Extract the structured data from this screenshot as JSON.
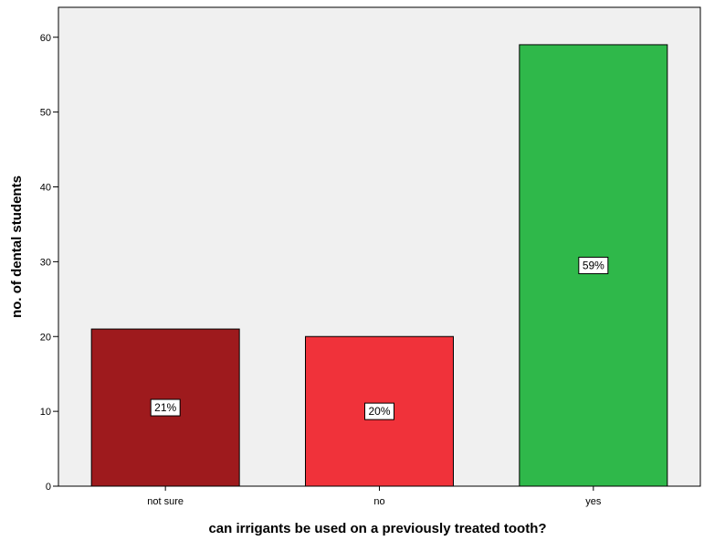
{
  "chart_data": {
    "type": "bar",
    "title": "",
    "xlabel": "can irrigants be used on a previously treated tooth?",
    "ylabel": "no. of dental students",
    "categories": [
      "not sure",
      "no",
      "yes"
    ],
    "values": [
      21,
      20,
      59
    ],
    "data_labels": [
      "21%",
      "20%",
      "59%"
    ],
    "colors": [
      "#9e1a1d",
      "#f0323a",
      "#2fb84a"
    ],
    "ylim": [
      0,
      64
    ],
    "yticks": [
      0,
      10,
      20,
      30,
      40,
      50,
      60
    ],
    "grid": false,
    "plot_background": "#f0f0f0"
  }
}
